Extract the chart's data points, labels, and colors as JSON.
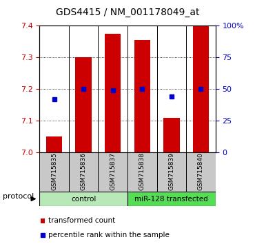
{
  "title": "GDS4415 / NM_001178049_at",
  "samples": [
    "GSM715835",
    "GSM715836",
    "GSM715837",
    "GSM715838",
    "GSM715839",
    "GSM715840"
  ],
  "transformed_counts": [
    7.05,
    7.3,
    7.375,
    7.355,
    7.11,
    7.4
  ],
  "percentile_ranks": [
    42,
    50,
    49,
    50,
    44,
    50
  ],
  "y_min": 7.0,
  "y_max": 7.4,
  "y_ticks": [
    7.0,
    7.1,
    7.2,
    7.3,
    7.4
  ],
  "right_y_ticks": [
    0,
    25,
    50,
    75,
    100
  ],
  "bar_color": "#cc0000",
  "dot_color": "#0000cc",
  "groups": [
    {
      "label": "control",
      "indices": [
        0,
        1,
        2
      ],
      "color": "#aaddaa"
    },
    {
      "label": "miR-128 transfected",
      "indices": [
        3,
        4,
        5
      ],
      "color": "#44cc44"
    }
  ],
  "protocol_label": "protocol",
  "legend_bar_label": "transformed count",
  "legend_dot_label": "percentile rank within the sample",
  "bar_width": 0.55,
  "sample_bg_color": "#c8c8c8",
  "title_fontsize": 10,
  "tick_fontsize": 8,
  "left_tick_color": "#cc0000",
  "right_tick_color": "#0000cc",
  "group_control_color": "#b8e8b8",
  "group_transfected_color": "#55dd55"
}
